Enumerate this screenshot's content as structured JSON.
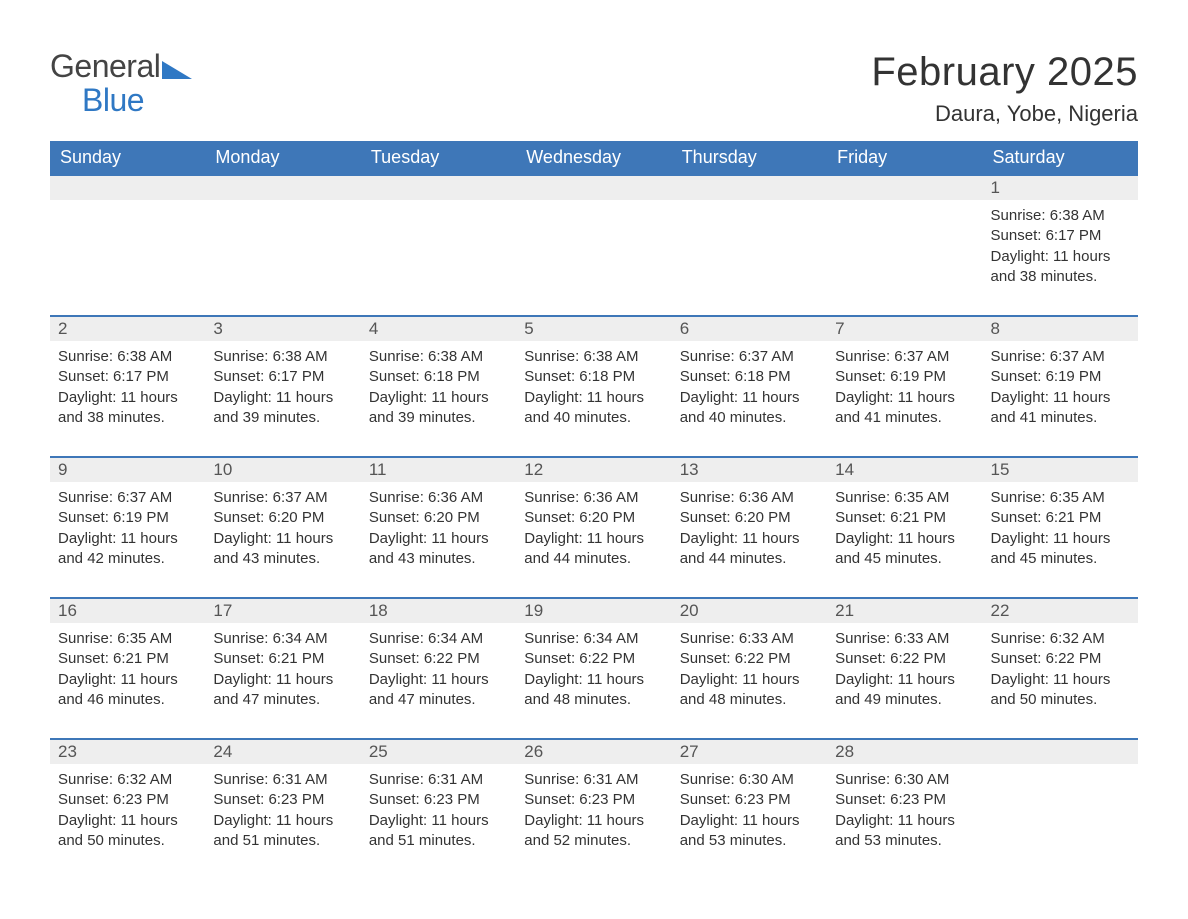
{
  "logo": {
    "word1": "General",
    "word2": "Blue"
  },
  "title": "February 2025",
  "location": "Daura, Yobe, Nigeria",
  "colors": {
    "header_bg": "#3e77b8",
    "header_text": "#ffffff",
    "daynum_bg": "#eeeeee",
    "daynum_text": "#555555",
    "body_text": "#333333",
    "row_divider": "#3e77b8",
    "logo_gray": "#444444",
    "logo_blue": "#2f78c4",
    "page_bg": "#ffffff"
  },
  "typography": {
    "title_fontsize_pt": 30,
    "subtitle_fontsize_pt": 17,
    "header_fontsize_pt": 14,
    "daynum_fontsize_pt": 13,
    "body_fontsize_pt": 11,
    "font_family": "Arial"
  },
  "day_headers": [
    "Sunday",
    "Monday",
    "Tuesday",
    "Wednesday",
    "Thursday",
    "Friday",
    "Saturday"
  ],
  "weeks": [
    [
      {
        "day": null
      },
      {
        "day": null
      },
      {
        "day": null
      },
      {
        "day": null
      },
      {
        "day": null
      },
      {
        "day": null
      },
      {
        "day": "1",
        "sunrise": "Sunrise: 6:38 AM",
        "sunset": "Sunset: 6:17 PM",
        "daylight": "Daylight: 11 hours and 38 minutes."
      }
    ],
    [
      {
        "day": "2",
        "sunrise": "Sunrise: 6:38 AM",
        "sunset": "Sunset: 6:17 PM",
        "daylight": "Daylight: 11 hours and 38 minutes."
      },
      {
        "day": "3",
        "sunrise": "Sunrise: 6:38 AM",
        "sunset": "Sunset: 6:17 PM",
        "daylight": "Daylight: 11 hours and 39 minutes."
      },
      {
        "day": "4",
        "sunrise": "Sunrise: 6:38 AM",
        "sunset": "Sunset: 6:18 PM",
        "daylight": "Daylight: 11 hours and 39 minutes."
      },
      {
        "day": "5",
        "sunrise": "Sunrise: 6:38 AM",
        "sunset": "Sunset: 6:18 PM",
        "daylight": "Daylight: 11 hours and 40 minutes."
      },
      {
        "day": "6",
        "sunrise": "Sunrise: 6:37 AM",
        "sunset": "Sunset: 6:18 PM",
        "daylight": "Daylight: 11 hours and 40 minutes."
      },
      {
        "day": "7",
        "sunrise": "Sunrise: 6:37 AM",
        "sunset": "Sunset: 6:19 PM",
        "daylight": "Daylight: 11 hours and 41 minutes."
      },
      {
        "day": "8",
        "sunrise": "Sunrise: 6:37 AM",
        "sunset": "Sunset: 6:19 PM",
        "daylight": "Daylight: 11 hours and 41 minutes."
      }
    ],
    [
      {
        "day": "9",
        "sunrise": "Sunrise: 6:37 AM",
        "sunset": "Sunset: 6:19 PM",
        "daylight": "Daylight: 11 hours and 42 minutes."
      },
      {
        "day": "10",
        "sunrise": "Sunrise: 6:37 AM",
        "sunset": "Sunset: 6:20 PM",
        "daylight": "Daylight: 11 hours and 43 minutes."
      },
      {
        "day": "11",
        "sunrise": "Sunrise: 6:36 AM",
        "sunset": "Sunset: 6:20 PM",
        "daylight": "Daylight: 11 hours and 43 minutes."
      },
      {
        "day": "12",
        "sunrise": "Sunrise: 6:36 AM",
        "sunset": "Sunset: 6:20 PM",
        "daylight": "Daylight: 11 hours and 44 minutes."
      },
      {
        "day": "13",
        "sunrise": "Sunrise: 6:36 AM",
        "sunset": "Sunset: 6:20 PM",
        "daylight": "Daylight: 11 hours and 44 minutes."
      },
      {
        "day": "14",
        "sunrise": "Sunrise: 6:35 AM",
        "sunset": "Sunset: 6:21 PM",
        "daylight": "Daylight: 11 hours and 45 minutes."
      },
      {
        "day": "15",
        "sunrise": "Sunrise: 6:35 AM",
        "sunset": "Sunset: 6:21 PM",
        "daylight": "Daylight: 11 hours and 45 minutes."
      }
    ],
    [
      {
        "day": "16",
        "sunrise": "Sunrise: 6:35 AM",
        "sunset": "Sunset: 6:21 PM",
        "daylight": "Daylight: 11 hours and 46 minutes."
      },
      {
        "day": "17",
        "sunrise": "Sunrise: 6:34 AM",
        "sunset": "Sunset: 6:21 PM",
        "daylight": "Daylight: 11 hours and 47 minutes."
      },
      {
        "day": "18",
        "sunrise": "Sunrise: 6:34 AM",
        "sunset": "Sunset: 6:22 PM",
        "daylight": "Daylight: 11 hours and 47 minutes."
      },
      {
        "day": "19",
        "sunrise": "Sunrise: 6:34 AM",
        "sunset": "Sunset: 6:22 PM",
        "daylight": "Daylight: 11 hours and 48 minutes."
      },
      {
        "day": "20",
        "sunrise": "Sunrise: 6:33 AM",
        "sunset": "Sunset: 6:22 PM",
        "daylight": "Daylight: 11 hours and 48 minutes."
      },
      {
        "day": "21",
        "sunrise": "Sunrise: 6:33 AM",
        "sunset": "Sunset: 6:22 PM",
        "daylight": "Daylight: 11 hours and 49 minutes."
      },
      {
        "day": "22",
        "sunrise": "Sunrise: 6:32 AM",
        "sunset": "Sunset: 6:22 PM",
        "daylight": "Daylight: 11 hours and 50 minutes."
      }
    ],
    [
      {
        "day": "23",
        "sunrise": "Sunrise: 6:32 AM",
        "sunset": "Sunset: 6:23 PM",
        "daylight": "Daylight: 11 hours and 50 minutes."
      },
      {
        "day": "24",
        "sunrise": "Sunrise: 6:31 AM",
        "sunset": "Sunset: 6:23 PM",
        "daylight": "Daylight: 11 hours and 51 minutes."
      },
      {
        "day": "25",
        "sunrise": "Sunrise: 6:31 AM",
        "sunset": "Sunset: 6:23 PM",
        "daylight": "Daylight: 11 hours and 51 minutes."
      },
      {
        "day": "26",
        "sunrise": "Sunrise: 6:31 AM",
        "sunset": "Sunset: 6:23 PM",
        "daylight": "Daylight: 11 hours and 52 minutes."
      },
      {
        "day": "27",
        "sunrise": "Sunrise: 6:30 AM",
        "sunset": "Sunset: 6:23 PM",
        "daylight": "Daylight: 11 hours and 53 minutes."
      },
      {
        "day": "28",
        "sunrise": "Sunrise: 6:30 AM",
        "sunset": "Sunset: 6:23 PM",
        "daylight": "Daylight: 11 hours and 53 minutes."
      },
      {
        "day": null
      }
    ]
  ]
}
